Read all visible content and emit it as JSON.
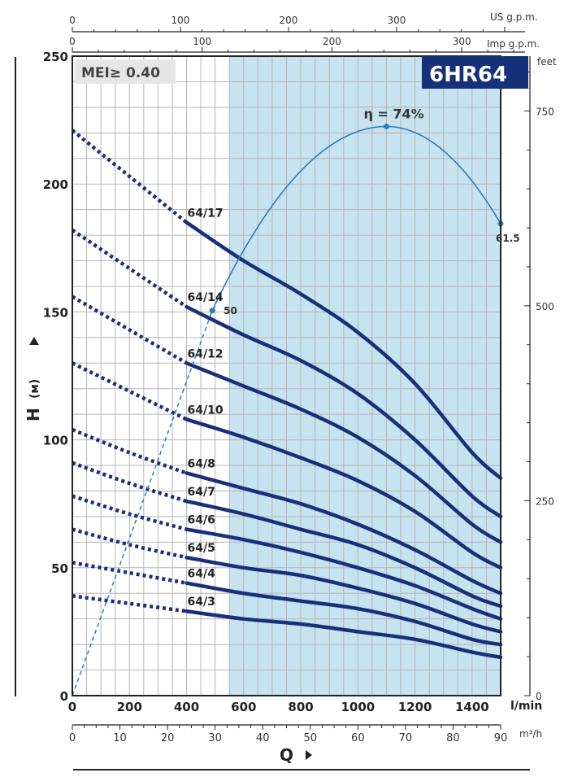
{
  "chart_data": {
    "type": "line",
    "title": "6HR64",
    "badge": "MEI≥ 0.40",
    "colors": {
      "curve": "#1a2f7a",
      "efficiency": "#2b7bbd",
      "band": "#c6e3ef",
      "model_box": "#16307a",
      "grid": "#b5b5b5"
    },
    "x_axis": {
      "label": "Q",
      "unit": "l/min",
      "range": [
        0,
        1500
      ],
      "ticks": [
        0,
        200,
        400,
        600,
        800,
        1000,
        1200,
        1400
      ]
    },
    "x_axis_m3h": {
      "unit": "m³/h",
      "ticks": [
        0,
        10,
        20,
        30,
        40,
        50,
        60,
        70,
        80,
        90
      ]
    },
    "x_axis_us_gpm": {
      "unit": "US g.p.m.",
      "ticks": [
        0,
        100,
        200,
        300
      ]
    },
    "x_axis_imp_gpm": {
      "unit": "Imp g.p.m.",
      "ticks": [
        0,
        100,
        200,
        300
      ]
    },
    "y_axis": {
      "label": "H",
      "unit": "(м)",
      "range": [
        0,
        250
      ],
      "ticks": [
        0,
        50,
        100,
        150,
        200,
        250
      ]
    },
    "y_axis_feet": {
      "unit": "feet",
      "ticks": [
        0,
        250,
        500,
        750
      ]
    },
    "recommended_range": [
      550,
      1500
    ],
    "series": [
      {
        "name": "64/17",
        "dotted": [
          [
            0,
            221
          ],
          [
            200,
            203
          ],
          [
            400,
            185
          ]
        ],
        "values": [
          [
            400,
            185
          ],
          [
            600,
            170
          ],
          [
            800,
            157
          ],
          [
            1000,
            142
          ],
          [
            1200,
            122
          ],
          [
            1400,
            95
          ],
          [
            1500,
            85
          ]
        ]
      },
      {
        "name": "64/14",
        "dotted": [
          [
            0,
            182
          ],
          [
            200,
            167
          ],
          [
            400,
            152
          ]
        ],
        "values": [
          [
            400,
            152
          ],
          [
            600,
            141
          ],
          [
            800,
            131
          ],
          [
            1000,
            118
          ],
          [
            1200,
            100
          ],
          [
            1400,
            78
          ],
          [
            1500,
            70
          ]
        ]
      },
      {
        "name": "64/12",
        "dotted": [
          [
            0,
            156
          ],
          [
            200,
            143
          ],
          [
            400,
            130
          ]
        ],
        "values": [
          [
            400,
            130
          ],
          [
            600,
            121
          ],
          [
            800,
            112
          ],
          [
            1000,
            101
          ],
          [
            1200,
            86
          ],
          [
            1400,
            67
          ],
          [
            1500,
            60
          ]
        ]
      },
      {
        "name": "64/10",
        "dotted": [
          [
            0,
            130
          ],
          [
            200,
            119
          ],
          [
            400,
            108
          ]
        ],
        "values": [
          [
            400,
            108
          ],
          [
            600,
            101
          ],
          [
            800,
            93
          ],
          [
            1000,
            84
          ],
          [
            1200,
            72
          ],
          [
            1400,
            56
          ],
          [
            1500,
            50
          ]
        ]
      },
      {
        "name": "64/8",
        "dotted": [
          [
            0,
            104
          ],
          [
            200,
            95
          ],
          [
            400,
            87
          ]
        ],
        "values": [
          [
            400,
            87
          ],
          [
            600,
            81
          ],
          [
            800,
            75
          ],
          [
            1000,
            67
          ],
          [
            1200,
            57
          ],
          [
            1400,
            45
          ],
          [
            1500,
            40
          ]
        ]
      },
      {
        "name": "64/7",
        "dotted": [
          [
            0,
            91
          ],
          [
            200,
            83
          ],
          [
            400,
            76
          ]
        ],
        "values": [
          [
            400,
            76
          ],
          [
            600,
            71
          ],
          [
            800,
            65
          ],
          [
            1000,
            59
          ],
          [
            1200,
            50
          ],
          [
            1400,
            39
          ],
          [
            1500,
            35
          ]
        ]
      },
      {
        "name": "64/6",
        "dotted": [
          [
            0,
            78
          ],
          [
            200,
            71
          ],
          [
            400,
            65
          ]
        ],
        "values": [
          [
            400,
            65
          ],
          [
            600,
            61
          ],
          [
            800,
            56
          ],
          [
            1000,
            50
          ],
          [
            1200,
            43
          ],
          [
            1400,
            34
          ],
          [
            1500,
            30
          ]
        ]
      },
      {
        "name": "64/5",
        "dotted": [
          [
            0,
            65
          ],
          [
            200,
            59
          ],
          [
            400,
            54
          ]
        ],
        "values": [
          [
            400,
            54
          ],
          [
            600,
            50
          ],
          [
            800,
            47
          ],
          [
            1000,
            42
          ],
          [
            1200,
            36
          ],
          [
            1400,
            28
          ],
          [
            1500,
            25
          ]
        ]
      },
      {
        "name": "64/4",
        "dotted": [
          [
            0,
            52
          ],
          [
            200,
            48
          ],
          [
            400,
            44
          ]
        ],
        "values": [
          [
            400,
            44
          ],
          [
            600,
            40
          ],
          [
            800,
            37
          ],
          [
            1000,
            34
          ],
          [
            1200,
            29
          ],
          [
            1400,
            22
          ],
          [
            1500,
            20
          ]
        ]
      },
      {
        "name": "64/3",
        "dotted": [
          [
            0,
            39
          ],
          [
            200,
            36
          ],
          [
            400,
            33
          ]
        ],
        "values": [
          [
            400,
            33
          ],
          [
            600,
            30
          ],
          [
            800,
            28
          ],
          [
            1000,
            25
          ],
          [
            1200,
            22
          ],
          [
            1400,
            17
          ],
          [
            1500,
            15
          ]
        ]
      }
    ],
    "efficiency_curve": {
      "label": "η = 74%",
      "points": [
        [
          490,
          150.5
        ],
        [
          1100,
          222.5
        ],
        [
          1500,
          184.5
        ]
      ],
      "start_label": "50",
      "end_label": "61.5"
    },
    "grid": true
  }
}
